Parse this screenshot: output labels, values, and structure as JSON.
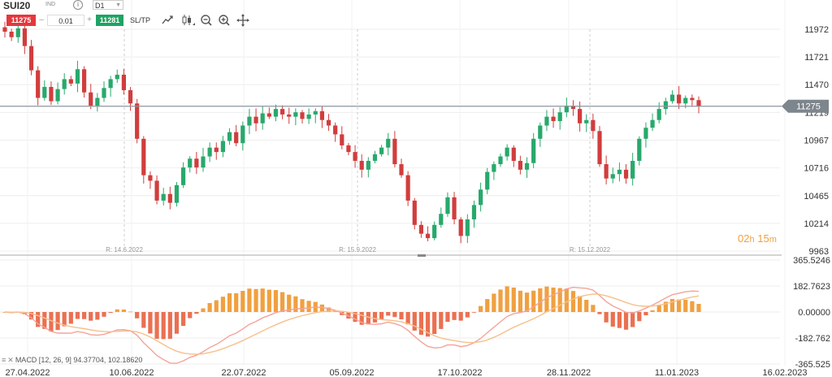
{
  "toolbar": {
    "symbol": "SUI20",
    "exchange": "IND",
    "info_icon": "info-icon",
    "timeframe": "D1",
    "sell_price": "11275",
    "quantity": "0.01",
    "buy_price": "11281",
    "sltp_label": "SL/TP",
    "icons": [
      "line-chart-icon",
      "candlestick-icon",
      "zoom-out-icon",
      "zoom-in-icon",
      "crosshair-move-icon"
    ]
  },
  "countdown": {
    "hours": "02",
    "h": "h",
    "minutes": "15",
    "m": "m"
  },
  "macd_label": "MACD [12, 26, 9] 94.37704, 102.18620",
  "colors": {
    "up": "#27a96c",
    "down": "#d13d3d",
    "hist_pos": "#f0a040",
    "hist_neg": "#ea7052",
    "macd_line": "#f4a39a",
    "signal_line": "#f7c08a"
  },
  "chart_data": {
    "type": "candlestick",
    "price_axis": {
      "ticks": [
        11972,
        11721,
        11470,
        11219,
        10967,
        10716,
        10465,
        10214,
        9963
      ],
      "ylim": [
        9963,
        12090
      ]
    },
    "current_price": 11275,
    "x_ticks": [
      "27.04.2022",
      "10.06.2022",
      "22.07.2022",
      "05.09.2022",
      "17.10.2022",
      "28.11.2022",
      "11.01.2023",
      "16.02.2023"
    ],
    "rollovers": [
      "R: 14.6.2022",
      "R: 15.9.2022",
      "R: 15.12.2022"
    ],
    "close_path": [
      11950,
      11900,
      11980,
      11820,
      11600,
      11350,
      11450,
      11320,
      11430,
      11520,
      11480,
      11610,
      11400,
      11280,
      11350,
      11440,
      11520,
      11560,
      11420,
      11300,
      10980,
      10650,
      10600,
      10420,
      10480,
      10400,
      10560,
      10720,
      10800,
      10720,
      10820,
      10900,
      10860,
      10960,
      11040,
      10940,
      11100,
      11180,
      11120,
      11210,
      11180,
      11250,
      11200,
      11180,
      11220,
      11160,
      11200,
      11230,
      11150,
      11100,
      11020,
      10920,
      10860,
      10780,
      10700,
      10780,
      10840,
      10900,
      10980,
      10750,
      10650,
      10420,
      10200,
      10120,
      10080,
      10200,
      10300,
      10450,
      10250,
      10100,
      10250,
      10380,
      10520,
      10680,
      10750,
      10820,
      10900,
      10780,
      10700,
      10760,
      10980,
      11100,
      11180,
      11140,
      11220,
      11280,
      11250,
      11120,
      11150,
      11050,
      10750,
      10620,
      10660,
      10700,
      10620,
      10780,
      10980,
      11080,
      11150,
      11250,
      11320,
      11380,
      11300,
      11350,
      11330,
      11275
    ],
    "macd": {
      "ylim": [
        -365.525,
        365.5246
      ],
      "ticks": [
        "365.5246",
        "182.7623",
        "0.00000",
        "-182.762",
        "-365.525"
      ],
      "current": [
        "94.37704",
        "102.18620"
      ]
    }
  }
}
